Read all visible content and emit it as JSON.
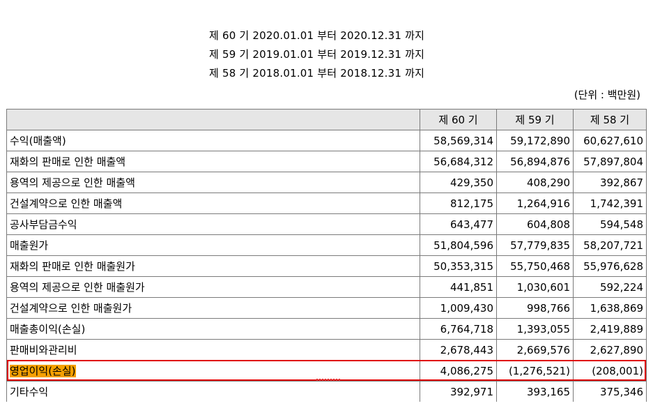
{
  "periods": [
    "제 60 기 2020.01.01 부터 2020.12.31 까지",
    "제 59 기 2019.01.01 부터 2019.12.31 까지",
    "제 58 기 2018.01.01 부터 2018.12.31 까지"
  ],
  "unit": "(단위 : 백만원)",
  "columns": [
    "",
    "제 60 기",
    "제 59 기",
    "제 58 기"
  ],
  "rows": [
    {
      "label": "수익(매출액)",
      "v60": "58,569,314",
      "v59": "59,172,890",
      "v58": "60,627,610"
    },
    {
      "label": "재화의 판매로 인한 매출액",
      "v60": "56,684,312",
      "v59": "56,894,876",
      "v58": "57,897,804"
    },
    {
      "label": "용역의 제공으로 인한 매출액",
      "v60": "429,350",
      "v59": "408,290",
      "v58": "392,867"
    },
    {
      "label": "건설계약으로 인한 매출액",
      "v60": "812,175",
      "v59": "1,264,916",
      "v58": "1,742,391"
    },
    {
      "label": "공사부담금수익",
      "v60": "643,477",
      "v59": "604,808",
      "v58": "594,548"
    },
    {
      "label": "매출원가",
      "v60": "51,804,596",
      "v59": "57,779,835",
      "v58": "58,207,721"
    },
    {
      "label": "재화의 판매로 인한 매출원가",
      "v60": "50,353,315",
      "v59": "55,750,468",
      "v58": "55,976,628"
    },
    {
      "label": "용역의 제공으로 인한 매출원가",
      "v60": "441,851",
      "v59": "1,030,601",
      "v58": "592,224"
    },
    {
      "label": "건설계약으로 인한 매출원가",
      "v60": "1,009,430",
      "v59": "998,766",
      "v58": "1,638,869"
    },
    {
      "label": "매출총이익(손실)",
      "v60": "6,764,718",
      "v59": "1,393,055",
      "v58": "2,419,889"
    },
    {
      "label": "판매비와관리비",
      "v60": "2,678,443",
      "v59": "2,669,576",
      "v58": "2,627,890"
    },
    {
      "label": "영업이익(손실)",
      "v60": "4,086,275",
      "v59": "(1,276,521)",
      "v58": "(208,001)"
    },
    {
      "label": "기타수익",
      "v60": "392,971",
      "v59": "393,165",
      "v58": "375,346"
    }
  ],
  "colors": {
    "highlight_border": "#e00000",
    "highlight_fill": "#f5a000",
    "header_bg": "#e6e6e6"
  }
}
